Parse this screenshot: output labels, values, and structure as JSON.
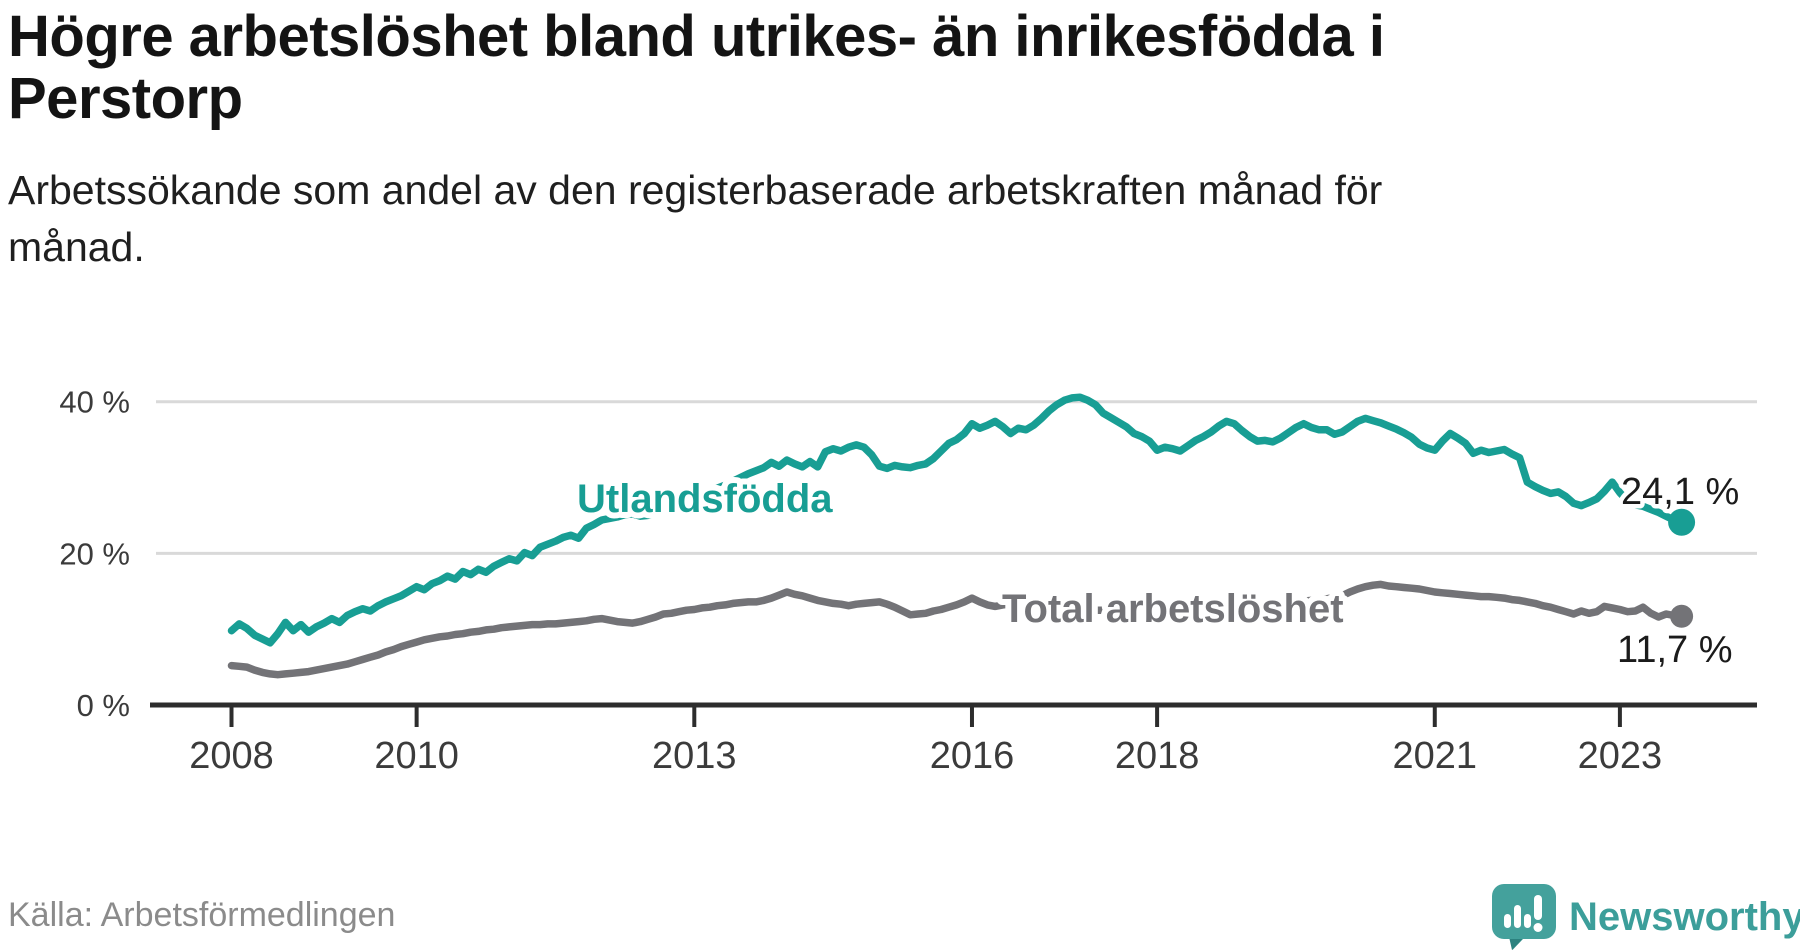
{
  "header": {
    "title_lines": [
      "Högre arbetslöshet bland utrikes- än inrikesfödda i",
      "Perstorp"
    ],
    "subtitle_lines": [
      "Arbetssökande som andel av den registerbaserade arbetskraften månad för",
      "månad."
    ]
  },
  "footer": {
    "source": "Källa: Arbetsförmedlingen",
    "brand": {
      "name": "Newsworthy",
      "icon": "newsworthy-speech-bubble-chart-icon",
      "color": "#3c9e9a"
    }
  },
  "colors": {
    "accent_teal": "#189e94",
    "neutral_gray": "#737377",
    "axis": "#2d2d2d",
    "grid": "#d9d9d9",
    "value_label": "#1b1b1b",
    "tick_label": "#3b3b3b"
  },
  "chart_data": {
    "type": "line",
    "title": "Högre arbetslöshet bland utrikes- än inrikesfödda i Perstorp",
    "subtitle": "Arbetssökande som andel av den registerbaserade arbetskraften månad för månad.",
    "source": "Källa: Arbetsförmedlingen",
    "legend": "inline-labels",
    "grid": "horizontal",
    "x_axis": {
      "ticks": [
        2008,
        2010,
        2013,
        2016,
        2018,
        2021,
        2023
      ],
      "range": [
        2007.1,
        2024.4
      ]
    },
    "y_axis": {
      "unit": "%",
      "tick_values": [
        40,
        20,
        0
      ],
      "tick_labels": [
        "40 %",
        "20 %",
        "0 %"
      ],
      "range": [
        0,
        43
      ]
    },
    "series": [
      {
        "name": "Utlandsfödda",
        "slug": "utlandsfodda",
        "color": "#189e94",
        "end_label": "24,1 %",
        "end_value": 24.1,
        "start_year": 2008,
        "frequency": "monthly",
        "values": [
          9.8,
          10.7,
          10.1,
          9.2,
          8.7,
          8.2,
          9.4,
          10.9,
          9.8,
          10.6,
          9.6,
          10.3,
          10.8,
          11.4,
          10.9,
          11.8,
          12.3,
          12.7,
          12.4,
          13.1,
          13.6,
          14.0,
          14.4,
          15.0,
          15.6,
          15.2,
          16.0,
          16.4,
          17.0,
          16.6,
          17.6,
          17.2,
          17.9,
          17.5,
          18.3,
          18.8,
          19.3,
          19.0,
          20.1,
          19.7,
          20.8,
          21.2,
          21.6,
          22.1,
          22.4,
          22.0,
          23.3,
          23.8,
          24.4,
          24.6,
          24.8,
          25.1,
          25.2,
          24.9,
          25.0,
          25.4,
          25.8,
          26.2,
          26.6,
          27.0,
          27.4,
          27.8,
          28.2,
          28.6,
          29.0,
          29.5,
          30.0,
          30.5,
          30.9,
          31.3,
          32.0,
          31.5,
          32.3,
          31.8,
          31.4,
          32.1,
          31.4,
          33.4,
          33.8,
          33.5,
          34.0,
          34.3,
          34.0,
          33.0,
          31.5,
          31.2,
          31.6,
          31.4,
          31.3,
          31.6,
          31.8,
          32.5,
          33.5,
          34.5,
          35.0,
          35.8,
          37.1,
          36.5,
          36.9,
          37.4,
          36.7,
          35.8,
          36.5,
          36.3,
          36.9,
          37.8,
          38.8,
          39.6,
          40.2,
          40.5,
          40.6,
          40.2,
          39.6,
          38.5,
          37.9,
          37.3,
          36.7,
          35.8,
          35.4,
          34.8,
          33.6,
          34.0,
          33.8,
          33.5,
          34.2,
          34.9,
          35.4,
          36.0,
          36.8,
          37.4,
          37.1,
          36.2,
          35.4,
          34.8,
          34.9,
          34.7,
          35.2,
          35.9,
          36.6,
          37.1,
          36.6,
          36.3,
          36.3,
          35.7,
          36.0,
          36.7,
          37.4,
          37.8,
          37.5,
          37.2,
          36.8,
          36.4,
          35.9,
          35.3,
          34.4,
          33.9,
          33.6,
          34.8,
          35.8,
          35.2,
          34.5,
          33.2,
          33.6,
          33.3,
          33.5,
          33.7,
          33.1,
          32.6,
          29.4,
          28.8,
          28.3,
          27.9,
          28.1,
          27.5,
          26.6,
          26.3,
          26.7,
          27.2,
          28.2,
          29.4,
          28.0,
          26.9,
          26.4,
          26.2,
          25.8,
          25.4,
          24.9,
          24.4,
          24.1
        ]
      },
      {
        "name": "Total arbetslöshet",
        "slug": "total-arbetsloshet",
        "color": "#737377",
        "end_label": "11,7 %",
        "end_value": 11.7,
        "start_year": 2008,
        "frequency": "monthly",
        "values": [
          5.2,
          5.1,
          5.0,
          4.6,
          4.3,
          4.1,
          4.0,
          4.1,
          4.2,
          4.3,
          4.4,
          4.6,
          4.8,
          5.0,
          5.2,
          5.4,
          5.7,
          6.0,
          6.3,
          6.6,
          7.0,
          7.3,
          7.7,
          8.0,
          8.3,
          8.6,
          8.8,
          9.0,
          9.1,
          9.3,
          9.4,
          9.6,
          9.7,
          9.9,
          10.0,
          10.2,
          10.3,
          10.4,
          10.5,
          10.6,
          10.6,
          10.7,
          10.7,
          10.8,
          10.9,
          11.0,
          11.1,
          11.3,
          11.4,
          11.2,
          11.0,
          10.9,
          10.8,
          11.0,
          11.3,
          11.6,
          12.0,
          12.1,
          12.3,
          12.5,
          12.6,
          12.8,
          12.9,
          13.1,
          13.2,
          13.4,
          13.5,
          13.6,
          13.6,
          13.8,
          14.1,
          14.5,
          14.9,
          14.6,
          14.4,
          14.1,
          13.8,
          13.6,
          13.4,
          13.3,
          13.1,
          13.3,
          13.4,
          13.5,
          13.6,
          13.3,
          12.9,
          12.4,
          11.9,
          12.0,
          12.1,
          12.4,
          12.6,
          12.9,
          13.2,
          13.6,
          14.1,
          13.6,
          13.2,
          13.0,
          13.2,
          13.3,
          13.4,
          13.5,
          13.4,
          13.2,
          13.1,
          12.9,
          12.8,
          12.7,
          12.6,
          12.6,
          12.5,
          12.5,
          12.4,
          12.5,
          12.5,
          12.6,
          12.6,
          12.7,
          12.7,
          12.8,
          12.9,
          13.0,
          13.0,
          13.0,
          13.0,
          13.1,
          13.1,
          13.1,
          13.2,
          13.2,
          13.2,
          13.3,
          13.3,
          13.4,
          13.5,
          13.6,
          13.5,
          13.7,
          13.8,
          13.9,
          14.0,
          14.2,
          14.4,
          14.9,
          15.3,
          15.6,
          15.8,
          15.9,
          15.7,
          15.6,
          15.5,
          15.4,
          15.3,
          15.1,
          14.9,
          14.8,
          14.7,
          14.6,
          14.5,
          14.4,
          14.3,
          14.3,
          14.2,
          14.1,
          13.9,
          13.8,
          13.6,
          13.4,
          13.1,
          12.9,
          12.6,
          12.3,
          12.0,
          12.4,
          12.1,
          12.3,
          13.0,
          12.8,
          12.6,
          12.3,
          12.4,
          12.9,
          12.1,
          11.6,
          12.0,
          11.8,
          11.7
        ]
      }
    ]
  }
}
